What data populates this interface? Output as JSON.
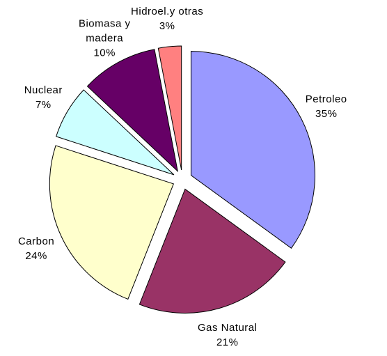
{
  "chart_data": {
    "type": "pie",
    "categories": [
      "Petroleo",
      "Gas Natural",
      "Carbon",
      "Nuclear",
      "Biomasa y madera",
      "Hidroel.y otras"
    ],
    "values": [
      35,
      21,
      24,
      7,
      10,
      3
    ],
    "value_labels": [
      "35%",
      "21%",
      "24%",
      "7%",
      "10%",
      "3%"
    ],
    "colors": [
      "#9999ff",
      "#993366",
      "#ffffcc",
      "#ccffff",
      "#660066",
      "#ff8080"
    ]
  }
}
